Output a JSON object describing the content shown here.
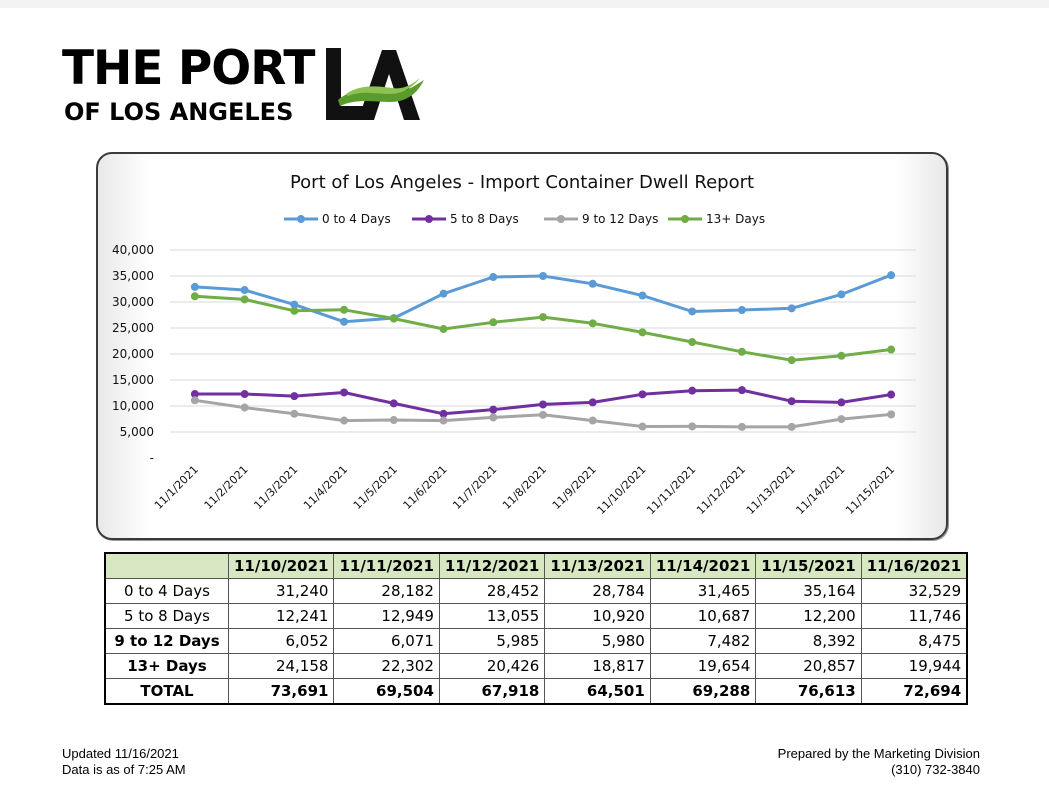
{
  "logo": {
    "line1": "THE PORT",
    "line2": "OF LOS ANGELES",
    "mark": "LA"
  },
  "colors": {
    "s0": "#5b9bd5",
    "s1": "#7030a0",
    "s2": "#a5a5a5",
    "s3": "#70ad47",
    "tableHeader": "#d6e7c2",
    "logoGreen": "#5a9b2e"
  },
  "chart_data": {
    "type": "line",
    "title": "Port of Los Angeles - Import Container Dwell Report",
    "categories": [
      "11/1/2021",
      "11/2/2021",
      "11/3/2021",
      "11/4/2021",
      "11/5/2021",
      "11/6/2021",
      "11/7/2021",
      "11/8/2021",
      "11/9/2021",
      "11/10/2021",
      "11/11/2021",
      "11/12/2021",
      "11/13/2021",
      "11/14/2021",
      "11/15/2021"
    ],
    "series": [
      {
        "name": "0 to 4 Days",
        "values": [
          32900,
          32300,
          29500,
          26200,
          26900,
          31600,
          34800,
          35000,
          33500,
          31240,
          28182,
          28452,
          28784,
          31465,
          35164
        ]
      },
      {
        "name": "5 to 8 Days",
        "values": [
          12300,
          12300,
          11900,
          12600,
          10500,
          8500,
          9300,
          10300,
          10700,
          12241,
          12949,
          13055,
          10920,
          10687,
          12200
        ]
      },
      {
        "name": "9 to 12 Days",
        "values": [
          11100,
          9700,
          8500,
          7200,
          7300,
          7200,
          7800,
          8300,
          7200,
          6052,
          6071,
          5985,
          5980,
          7482,
          8392
        ]
      },
      {
        "name": "13+  Days",
        "values": [
          31100,
          30500,
          28300,
          28500,
          26800,
          24800,
          26100,
          27100,
          25900,
          24158,
          22302,
          20426,
          18817,
          19654,
          20857
        ]
      }
    ],
    "ylim": [
      0,
      40000
    ],
    "yticks": [
      "-",
      "5,000",
      "10,000",
      "15,000",
      "20,000",
      "25,000",
      "30,000",
      "35,000",
      "40,000"
    ],
    "grid": true,
    "legend": "top"
  },
  "table": {
    "columns": [
      "11/10/2021",
      "11/11/2021",
      "11/12/2021",
      "11/13/2021",
      "11/14/2021",
      "11/15/2021",
      "11/16/2021"
    ],
    "rows": [
      {
        "label": "0 to 4 Days",
        "bold": false,
        "values": [
          "31,240",
          "28,182",
          "28,452",
          "28,784",
          "31,465",
          "35,164",
          "32,529"
        ]
      },
      {
        "label": "5 to 8 Days",
        "bold": false,
        "values": [
          "12,241",
          "12,949",
          "13,055",
          "10,920",
          "10,687",
          "12,200",
          "11,746"
        ]
      },
      {
        "label": "9 to 12 Days",
        "bold": true,
        "values": [
          "6,052",
          "6,071",
          "5,985",
          "5,980",
          "7,482",
          "8,392",
          "8,475"
        ]
      },
      {
        "label": "13+  Days",
        "bold": true,
        "values": [
          "24,158",
          "22,302",
          "20,426",
          "18,817",
          "19,654",
          "20,857",
          "19,944"
        ]
      },
      {
        "label": "TOTAL",
        "bold": true,
        "values": [
          "73,691",
          "69,504",
          "67,918",
          "64,501",
          "69,288",
          "76,613",
          "72,694"
        ]
      }
    ]
  },
  "footer": {
    "updated": "Updated 11/16/2021",
    "asof": "Data is as of 7:25 AM",
    "prepared": "Prepared by the Marketing Division",
    "phone": "(310) 732-3840"
  }
}
